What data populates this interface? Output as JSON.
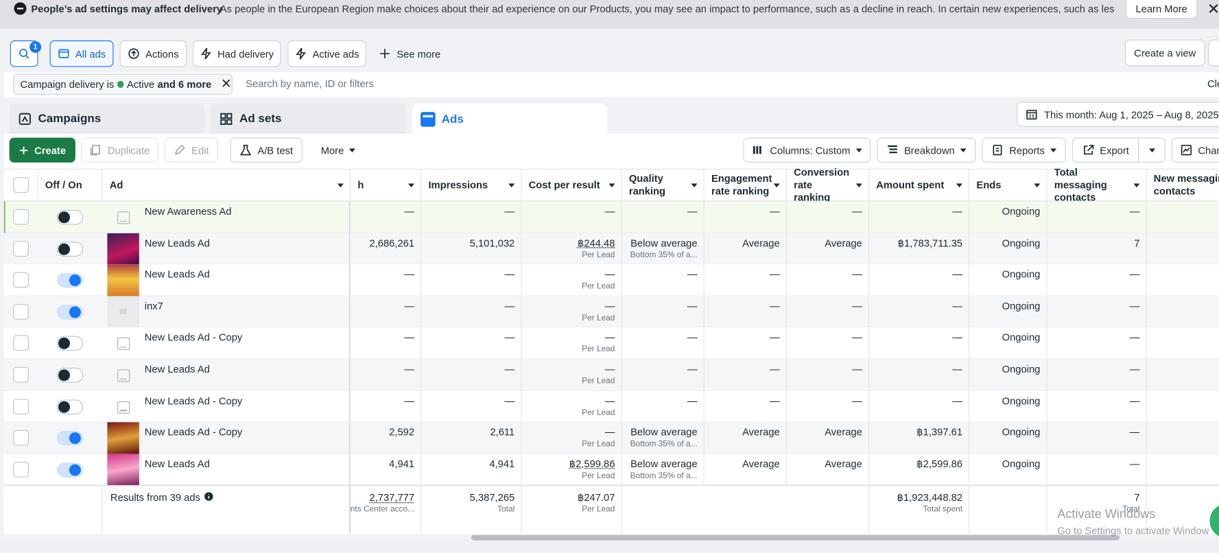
{
  "banner": {
    "title": "People’s ad settings may affect delivery",
    "message": "As people in the European Region make choices about their ad experience on our Products, you may see an impact to performance, such as a decline in reach. In certain new experiences, such as less-pers...",
    "button": "Learn More"
  },
  "toolbar": {
    "search_badge": "1",
    "filters": [
      "All ads",
      "Actions",
      "Had delivery",
      "Active ads"
    ],
    "see_more": "See more",
    "create_view": "Create a view"
  },
  "filter_bar": {
    "chip_prefix": "Campaign delivery is",
    "chip_status": "Active",
    "chip_more": "and 6 more",
    "search_placeholder": "Search by name, ID or filters",
    "clear": "Cle"
  },
  "tabs": [
    "Campaigns",
    "Ad sets",
    "Ads"
  ],
  "selected_tab": 2,
  "date_range": "This month: Aug 1, 2025 – Aug 8, 2025",
  "actions": {
    "create": "Create",
    "duplicate": "Duplicate",
    "edit": "Edit",
    "ab_test": "A/B test",
    "more": "More",
    "columns": "Columns: Custom",
    "breakdown": "Breakdown",
    "reports": "Reports",
    "export": "Export",
    "chart": "Chart"
  },
  "table": {
    "columns": [
      "Off / On",
      "Ad",
      "h",
      "Impressions",
      "Cost per result",
      "Quality ranking",
      "Engagement rate ranking",
      "Conversion rate ranking",
      "Amount spent",
      "Ends",
      "Total messaging contacts",
      "New messaging contacts"
    ],
    "rows": [
      {
        "active": false,
        "thumb": "icon",
        "name": "New Awareness Ad",
        "reach": "—",
        "impressions": "—",
        "cost": "—",
        "cost_note": null,
        "quality": "—",
        "quality_note": null,
        "engagement": "—",
        "conversion": "—",
        "amount_spent": "—",
        "ends": "Ongoing",
        "messaging": "—"
      },
      {
        "active": false,
        "thumb": "image",
        "name": "New Leads Ad",
        "reach": "2,686,261",
        "impressions": "5,101,032",
        "cost": "฿244.48",
        "cost_note": "Per Lead",
        "quality": "Below average",
        "quality_note": "Bottom 35% of a...",
        "engagement": "Average",
        "conversion": "Average",
        "amount_spent": "฿1,783,711.35",
        "ends": "Ongoing",
        "messaging": "7"
      },
      {
        "active": true,
        "thumb": "image",
        "name": "New Leads Ad",
        "reach": "—",
        "impressions": "—",
        "cost": "—",
        "cost_note": "Per Lead",
        "quality": "—",
        "quality_note": null,
        "engagement": "—",
        "conversion": "—",
        "amount_spent": "—",
        "ends": "Ongoing",
        "messaging": "—"
      },
      {
        "active": true,
        "thumb": "blank",
        "name": "inx7",
        "reach": "—",
        "impressions": "—",
        "cost": "—",
        "cost_note": "Per Lead",
        "quality": "—",
        "quality_note": null,
        "engagement": "—",
        "conversion": "—",
        "amount_spent": "—",
        "ends": "Ongoing",
        "messaging": "—"
      },
      {
        "active": false,
        "thumb": "icon",
        "name": "New Leads Ad - Copy",
        "reach": "—",
        "impressions": "—",
        "cost": "—",
        "cost_note": "Per Lead",
        "quality": "—",
        "quality_note": null,
        "engagement": "—",
        "conversion": "—",
        "amount_spent": "—",
        "ends": "Ongoing",
        "messaging": "—"
      },
      {
        "active": false,
        "thumb": "icon",
        "name": "New Leads Ad",
        "reach": "—",
        "impressions": "—",
        "cost": "—",
        "cost_note": "Per Lead",
        "quality": "—",
        "quality_note": null,
        "engagement": "—",
        "conversion": "—",
        "amount_spent": "—",
        "ends": "Ongoing",
        "messaging": "—"
      },
      {
        "active": false,
        "thumb": "icon",
        "name": "New Leads Ad - Copy",
        "reach": "—",
        "impressions": "—",
        "cost": "—",
        "cost_note": "Per Lead",
        "quality": "—",
        "quality_note": null,
        "engagement": "—",
        "conversion": "—",
        "amount_spent": "—",
        "ends": "Ongoing",
        "messaging": "—"
      },
      {
        "active": true,
        "thumb": "image",
        "name": "New Leads Ad - Copy",
        "reach": "2,592",
        "impressions": "2,611",
        "cost": "—",
        "cost_note": "Per Lead",
        "quality": "Below average",
        "quality_note": "Bottom 35% of a...",
        "engagement": "Average",
        "conversion": "Average",
        "amount_spent": "฿1,397.61",
        "ends": "Ongoing",
        "messaging": "—"
      },
      {
        "active": true,
        "thumb": "image",
        "name": "New Leads Ad",
        "reach": "4,941",
        "impressions": "4,941",
        "cost": "฿2,599.86",
        "cost_note": "Per Lead",
        "quality": "Below average",
        "quality_note": "Bottom 35% of a...",
        "engagement": "Average",
        "conversion": "Average",
        "amount_spent": "฿2,599.86",
        "ends": "Ongoing",
        "messaging": "—"
      }
    ],
    "footer": {
      "label": "Results from 39 ads",
      "reach": "2,737,777",
      "reach_note": "nts Center acco...",
      "impressions": "5,387,265",
      "impressions_note": "Total",
      "cost": "฿247.07",
      "cost_note": "Per Lead",
      "amount_spent": "฿1,923,448.82",
      "amount_note": "Total spent",
      "messaging": "7",
      "messaging_note": "Total"
    }
  },
  "watermark": {
    "title": "Activate Windows",
    "subtitle": "Go to Settings to activate Window"
  }
}
